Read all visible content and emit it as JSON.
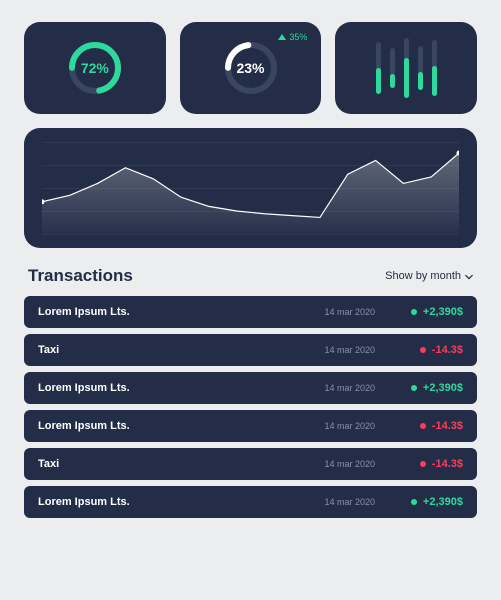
{
  "colors": {
    "card_bg": "#232d47",
    "page_bg": "#ecedee",
    "accent": "#2ed99e",
    "negative": "#ff3b5c",
    "muted": "#8a92a8",
    "bar_track": "#3a4560"
  },
  "stats": {
    "donut1": {
      "percent": 72,
      "label": "72%",
      "stroke": "#2ed99e",
      "track": "#3a4560"
    },
    "donut2": {
      "percent": 23,
      "label": "23%",
      "stroke": "#ffffff",
      "track": "#3a4560",
      "trend": "35%"
    },
    "bars": {
      "heights": [
        52,
        40,
        60,
        44,
        56
      ],
      "fills": [
        26,
        14,
        40,
        18,
        30
      ],
      "fill_color": "#2ed99e",
      "track_color": "#3a4560"
    }
  },
  "chart": {
    "type": "area",
    "points": [
      0.35,
      0.42,
      0.55,
      0.72,
      0.6,
      0.4,
      0.3,
      0.25,
      0.22,
      0.2,
      0.18,
      0.65,
      0.8,
      0.55,
      0.62,
      0.88
    ],
    "stroke": "#ffffff",
    "fill_top": "rgba(255,255,255,0.28)",
    "fill_bottom": "rgba(255,255,255,0.02)",
    "grid_lines": 5,
    "dot_color": "#ffffff"
  },
  "transactions": {
    "title": "Transactions",
    "filter_label": "Show by month",
    "rows": [
      {
        "name": "Lorem Ipsum Lts.",
        "date": "14 mar 2020",
        "amount": "+2,390$",
        "positive": true
      },
      {
        "name": "Taxi",
        "date": "14 mar 2020",
        "amount": "-14.3$",
        "positive": false
      },
      {
        "name": "Lorem Ipsum Lts.",
        "date": "14 mar 2020",
        "amount": "+2,390$",
        "positive": true
      },
      {
        "name": "Lorem Ipsum Lts.",
        "date": "14 mar 2020",
        "amount": "-14.3$",
        "positive": false
      },
      {
        "name": "Taxi",
        "date": "14 mar 2020",
        "amount": "-14.3$",
        "positive": false
      },
      {
        "name": "Lorem Ipsum Lts.",
        "date": "14 mar 2020",
        "amount": "+2,390$",
        "positive": true
      }
    ]
  }
}
